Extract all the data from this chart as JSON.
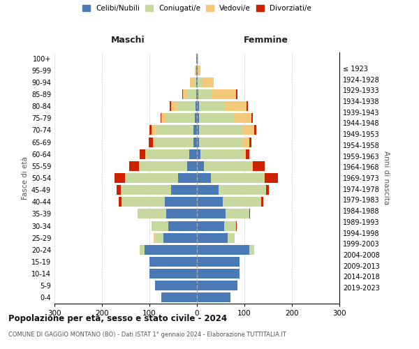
{
  "age_groups": [
    "0-4",
    "5-9",
    "10-14",
    "15-19",
    "20-24",
    "25-29",
    "30-34",
    "35-39",
    "40-44",
    "45-49",
    "50-54",
    "55-59",
    "60-64",
    "65-69",
    "70-74",
    "75-79",
    "80-84",
    "85-89",
    "90-94",
    "95-99",
    "100+"
  ],
  "birth_years": [
    "2019-2023",
    "2014-2018",
    "2009-2013",
    "2004-2008",
    "1999-2003",
    "1994-1998",
    "1989-1993",
    "1984-1988",
    "1979-1983",
    "1974-1978",
    "1969-1973",
    "1964-1968",
    "1959-1963",
    "1954-1958",
    "1949-1953",
    "1944-1948",
    "1939-1943",
    "1934-1938",
    "1929-1933",
    "1924-1928",
    "≤ 1923"
  ],
  "colors": {
    "celibi": "#4a7ab5",
    "coniugati": "#c8d9a0",
    "vedovi": "#f5c97a",
    "divorziati": "#cc2200"
  },
  "males": {
    "celibi": [
      75,
      88,
      100,
      100,
      110,
      70,
      60,
      65,
      68,
      55,
      40,
      20,
      16,
      8,
      7,
      5,
      3,
      2,
      1,
      1,
      1
    ],
    "coniugati": [
      0,
      0,
      0,
      0,
      10,
      20,
      35,
      60,
      90,
      105,
      110,
      100,
      90,
      80,
      80,
      60,
      40,
      18,
      5,
      1,
      0
    ],
    "vedovi": [
      0,
      0,
      0,
      0,
      0,
      1,
      0,
      0,
      1,
      1,
      2,
      2,
      3,
      5,
      8,
      10,
      12,
      10,
      8,
      2,
      1
    ],
    "divorziati": [
      0,
      0,
      0,
      0,
      0,
      0,
      0,
      0,
      5,
      8,
      22,
      20,
      12,
      8,
      5,
      2,
      2,
      1,
      1,
      0,
      0
    ]
  },
  "females": {
    "celibi": [
      70,
      85,
      90,
      90,
      110,
      65,
      58,
      60,
      55,
      45,
      30,
      15,
      8,
      5,
      5,
      4,
      4,
      3,
      2,
      1,
      1
    ],
    "coniugati": [
      0,
      0,
      0,
      0,
      10,
      15,
      25,
      50,
      80,
      100,
      110,
      100,
      90,
      90,
      90,
      75,
      55,
      30,
      8,
      1,
      0
    ],
    "vedovi": [
      0,
      0,
      0,
      0,
      0,
      0,
      0,
      0,
      1,
      1,
      2,
      3,
      5,
      15,
      25,
      35,
      45,
      50,
      25,
      5,
      2
    ],
    "divorziati": [
      0,
      0,
      0,
      0,
      0,
      0,
      1,
      2,
      3,
      5,
      28,
      25,
      8,
      5,
      5,
      3,
      3,
      2,
      1,
      0,
      0
    ]
  },
  "title": "Popolazione per età, sesso e stato civile - 2024",
  "subtitle": "COMUNE DI GAGGIO MONTANO (BO) - Dati ISTAT 1° gennaio 2024 - Elaborazione TUTTITALIA.IT",
  "xlabel_left": "Maschi",
  "xlabel_right": "Femmine",
  "ylabel_left": "Fasce di età",
  "ylabel_right": "Anni di nascita",
  "xlim": 300,
  "background_color": "#ffffff",
  "grid_color": "#cccccc",
  "legend_labels": [
    "Celibi/Nubili",
    "Coniugati/e",
    "Vedovi/e",
    "Divorziati/e"
  ]
}
